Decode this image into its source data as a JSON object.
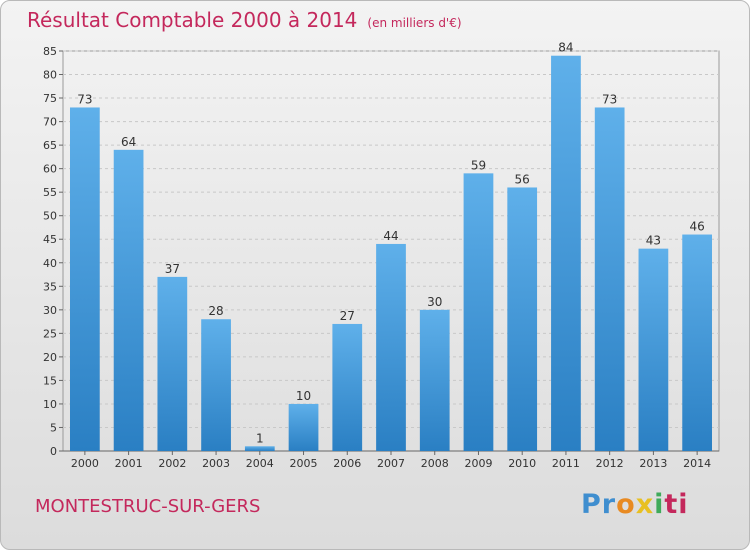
{
  "title": "Résultat Comptable 2000 à 2014",
  "subtitle": "(en milliers d'€)",
  "place": "MONTESTRUC-SUR-GERS",
  "brand": "Proxiti",
  "colors": {
    "accent": "#c4285c",
    "bar": "#3b8fd3"
  },
  "chart_data": {
    "type": "bar",
    "categories": [
      "2000",
      "2001",
      "2002",
      "2003",
      "2004",
      "2005",
      "2006",
      "2007",
      "2008",
      "2009",
      "2010",
      "2011",
      "2012",
      "2013",
      "2014"
    ],
    "values": [
      73,
      64,
      37,
      28,
      1,
      10,
      27,
      44,
      30,
      59,
      56,
      84,
      73,
      43,
      46
    ],
    "ylim": [
      0,
      85
    ],
    "yticks": [
      0,
      5,
      10,
      15,
      20,
      25,
      30,
      35,
      40,
      45,
      50,
      55,
      60,
      65,
      70,
      75,
      80,
      85
    ],
    "grid": true
  }
}
